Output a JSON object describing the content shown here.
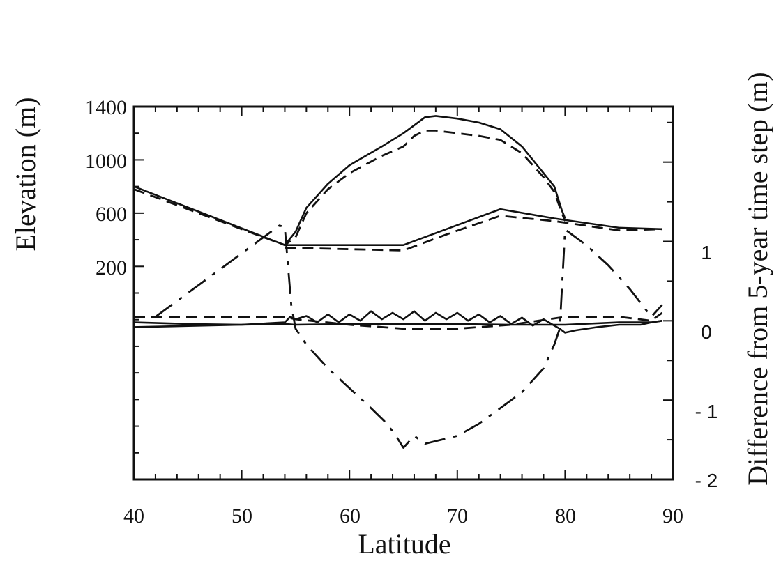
{
  "chart_data": {
    "type": "line",
    "xlabel": "Latitude",
    "ylabel_left": "Elevation (m)",
    "ylabel_right": "Difference from 5-year time step (m)",
    "x_ticks": [
      "40",
      "50",
      "60",
      "70",
      "80",
      "90"
    ],
    "left_ticks": [
      "1400",
      "1000",
      "600",
      "200"
    ],
    "right_ticks": [
      "1",
      "0",
      "- 1",
      "- 2"
    ],
    "xlim": [
      40,
      90
    ],
    "left_ylim": [
      -1400,
      1400
    ],
    "right_ylim": [
      -2,
      2.7
    ],
    "grid": false,
    "legend": "none",
    "series": [
      {
        "axis": "left",
        "style": "solid",
        "x": [
          40,
          54,
          55,
          56,
          58,
          60,
          63,
          65,
          66,
          67,
          68,
          70,
          72,
          74,
          76,
          78,
          79,
          79.7,
          80
        ],
        "y": [
          800,
          360,
          460,
          640,
          820,
          960,
          1100,
          1200,
          1260,
          1320,
          1330,
          1310,
          1280,
          1230,
          1100,
          900,
          800,
          620,
          560
        ]
      },
      {
        "axis": "left",
        "style": "dashed",
        "x": [
          40,
          54,
          55,
          56,
          58,
          60,
          63,
          65,
          66,
          67,
          68,
          70,
          72,
          74,
          76,
          78,
          79,
          79.7,
          80
        ],
        "y": [
          780,
          360,
          420,
          600,
          780,
          900,
          1030,
          1100,
          1180,
          1220,
          1220,
          1200,
          1180,
          1150,
          1050,
          870,
          760,
          600,
          540
        ]
      },
      {
        "axis": "left",
        "style": "solid",
        "x": [
          54,
          65,
          69,
          74,
          79,
          85,
          89
        ],
        "y": [
          360,
          360,
          480,
          630,
          560,
          490,
          480
        ]
      },
      {
        "axis": "left",
        "style": "dashed",
        "x": [
          54,
          65,
          69,
          74,
          79,
          85,
          89
        ],
        "y": [
          340,
          320,
          440,
          580,
          540,
          470,
          480
        ]
      },
      {
        "axis": "right",
        "style": "dash-dot",
        "x": [
          42,
          44,
          46,
          48,
          50,
          52,
          53.5,
          54,
          54.6,
          55,
          56,
          58,
          60,
          62,
          63.5,
          64.3,
          65,
          66,
          67,
          70,
          72,
          74,
          76,
          78,
          79,
          79.5,
          80,
          82,
          84,
          86,
          88,
          89
        ],
        "y": [
          0.05,
          0.25,
          0.45,
          0.65,
          0.85,
          1.05,
          1.2,
          1.18,
          0.2,
          -0.1,
          -0.3,
          -0.6,
          -0.85,
          -1.1,
          -1.3,
          -1.45,
          -1.6,
          -1.45,
          -1.55,
          -1.45,
          -1.3,
          -1.1,
          -0.9,
          -0.6,
          -0.3,
          -0.1,
          1.15,
          0.95,
          0.7,
          0.4,
          0.05,
          0.2
        ]
      },
      {
        "axis": "right",
        "style": "dashed",
        "x": [
          40,
          54,
          55,
          60,
          65,
          70,
          75,
          80,
          85,
          88,
          89
        ],
        "y": [
          0.05,
          0.05,
          0.02,
          -0.05,
          -0.1,
          -0.1,
          -0.05,
          0.05,
          0.05,
          0.0,
          0.1
        ]
      },
      {
        "axis": "right",
        "style": "solid",
        "x": [
          40,
          50,
          54,
          54.5,
          55,
          56,
          57,
          58,
          59,
          60,
          61,
          62,
          63,
          64,
          65,
          66,
          67,
          68,
          69,
          70,
          71,
          72,
          73,
          74,
          75,
          76,
          77,
          78,
          79,
          79.5,
          80,
          81,
          83,
          85,
          87,
          88,
          89
        ],
        "y": [
          -0.08,
          -0.05,
          -0.02,
          0.05,
          0.02,
          0.06,
          -0.02,
          0.08,
          -0.02,
          0.08,
          0.0,
          0.12,
          0.02,
          0.1,
          0.02,
          0.12,
          0.0,
          0.1,
          0.02,
          0.1,
          0.0,
          0.08,
          -0.02,
          0.06,
          -0.04,
          0.04,
          -0.06,
          0.02,
          -0.06,
          -0.1,
          -0.15,
          -0.12,
          -0.08,
          -0.05,
          -0.05,
          -0.02,
          0.0
        ]
      },
      {
        "axis": "right",
        "style": "solid",
        "x": [
          40,
          45,
          50,
          54,
          55,
          60,
          65,
          70,
          75,
          79,
          80,
          85,
          88,
          89
        ],
        "y": [
          -0.02,
          -0.04,
          -0.05,
          -0.04,
          -0.05,
          -0.04,
          -0.04,
          -0.04,
          -0.05,
          -0.05,
          -0.05,
          -0.02,
          -0.02,
          0.0
        ]
      }
    ]
  }
}
